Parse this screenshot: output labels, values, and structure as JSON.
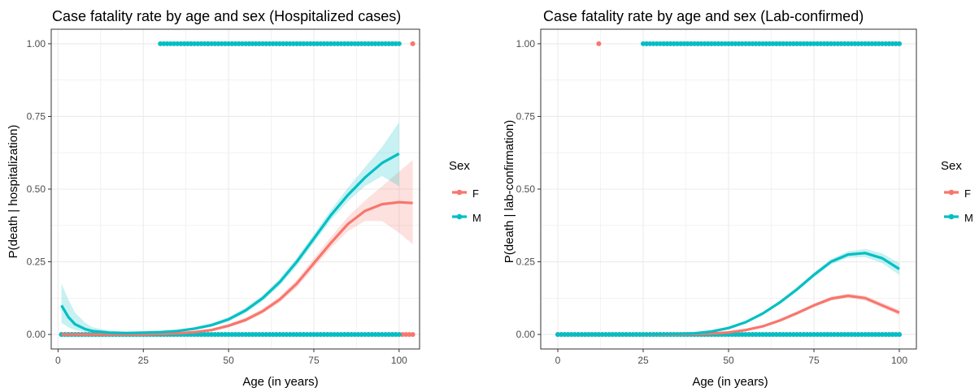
{
  "colors": {
    "F": "#F8766D",
    "M": "#00BFC4",
    "grid": "#EBEBEB",
    "axis": "#333333"
  },
  "chart_data": [
    {
      "type": "scatter",
      "title": "Case fatality rate by age and sex (Hospitalized cases)",
      "xlabel": "Age (in years)",
      "ylabel": "P(death | hospitalization)",
      "xlim": [
        -2,
        106
      ],
      "ylim": [
        -0.05,
        1.05
      ],
      "x_ticks": [
        0,
        25,
        50,
        75,
        100
      ],
      "y_ticks": [
        0.0,
        0.25,
        0.5,
        0.75,
        1.0
      ],
      "x_tick_labels": [
        "0",
        "25",
        "50",
        "75",
        "100"
      ],
      "y_tick_labels": [
        "0.00",
        "0.25",
        "0.50",
        "0.75",
        "1.00"
      ],
      "grid": true,
      "legend": {
        "title": "Sex",
        "position": "right",
        "entries": [
          "F",
          "M"
        ]
      },
      "series": [
        {
          "name": "F",
          "points_y0_age_range": [
            1,
            104
          ],
          "points_y1_ages": [
            36,
            39,
            42,
            45,
            48,
            51,
            54,
            57,
            60,
            63,
            66,
            69,
            72,
            75,
            78,
            81,
            84,
            87,
            90,
            93,
            96,
            99,
            104
          ],
          "fit": {
            "x": [
              1,
              5,
              10,
              15,
              20,
              25,
              30,
              35,
              40,
              45,
              50,
              55,
              60,
              65,
              70,
              75,
              80,
              85,
              90,
              95,
              100,
              104
            ],
            "y": [
              0.0,
              0.0,
              0.0,
              0.0,
              0.0,
              0.0,
              0.002,
              0.004,
              0.008,
              0.015,
              0.03,
              0.05,
              0.08,
              0.12,
              0.175,
              0.245,
              0.315,
              0.38,
              0.425,
              0.448,
              0.455,
              0.452
            ],
            "lo": [
              0.0,
              0.0,
              0.0,
              0.0,
              0.0,
              0.0,
              0.0,
              0.002,
              0.005,
              0.011,
              0.024,
              0.043,
              0.072,
              0.11,
              0.162,
              0.23,
              0.297,
              0.355,
              0.39,
              0.39,
              0.35,
              0.31
            ],
            "hi": [
              0.0,
              0.0,
              0.0,
              0.0,
              0.0,
              0.0,
              0.004,
              0.007,
              0.012,
              0.02,
              0.036,
              0.058,
              0.089,
              0.13,
              0.188,
              0.262,
              0.335,
              0.405,
              0.46,
              0.51,
              0.56,
              0.6
            ]
          }
        },
        {
          "name": "M",
          "points_y0_age_range": [
            1,
            100
          ],
          "points_y1_ages": [
            30,
            33,
            35,
            38,
            40,
            42,
            44,
            46,
            48,
            50,
            52,
            54,
            56,
            58,
            60,
            62,
            64,
            66,
            68,
            70,
            72,
            74,
            76,
            78,
            80,
            82,
            84,
            86,
            88,
            90,
            92,
            94,
            96,
            98,
            100
          ],
          "fit": {
            "x": [
              1,
              3,
              5,
              8,
              10,
              15,
              20,
              25,
              30,
              35,
              40,
              45,
              50,
              55,
              60,
              65,
              70,
              75,
              80,
              85,
              90,
              95,
              100
            ],
            "y": [
              0.1,
              0.06,
              0.035,
              0.018,
              0.012,
              0.006,
              0.005,
              0.006,
              0.008,
              0.012,
              0.02,
              0.032,
              0.052,
              0.083,
              0.125,
              0.18,
              0.25,
              0.33,
              0.41,
              0.48,
              0.54,
              0.59,
              0.622
            ],
            "lo": [
              0.04,
              0.025,
              0.015,
              0.008,
              0.005,
              0.002,
              0.002,
              0.003,
              0.005,
              0.008,
              0.015,
              0.026,
              0.045,
              0.074,
              0.115,
              0.168,
              0.236,
              0.315,
              0.393,
              0.458,
              0.51,
              0.545,
              0.51
            ],
            "hi": [
              0.175,
              0.12,
              0.075,
              0.04,
              0.025,
              0.013,
              0.009,
              0.009,
              0.011,
              0.016,
              0.025,
              0.038,
              0.06,
              0.092,
              0.135,
              0.192,
              0.264,
              0.345,
              0.428,
              0.505,
              0.575,
              0.645,
              0.73
            ]
          }
        }
      ]
    },
    {
      "type": "scatter",
      "title": "Case fatality rate by age and sex (Lab-confirmed)",
      "xlabel": "Age (in years)",
      "ylabel": "P(death | lab-confirmation)",
      "xlim": [
        -5,
        105
      ],
      "ylim": [
        -0.05,
        1.05
      ],
      "x_ticks": [
        0,
        25,
        50,
        75,
        100
      ],
      "y_ticks": [
        0.0,
        0.25,
        0.5,
        0.75,
        1.0
      ],
      "x_tick_labels": [
        "0",
        "25",
        "50",
        "75",
        "100"
      ],
      "y_tick_labels": [
        "0.00",
        "0.25",
        "0.50",
        "0.75",
        "1.00"
      ],
      "grid": true,
      "legend": {
        "title": "Sex",
        "position": "right",
        "entries": [
          "F",
          "M"
        ]
      },
      "series": [
        {
          "name": "F",
          "points_y0_age_range": [
            0,
            100
          ],
          "points_y1_ages": [
            12,
            26,
            31,
            33,
            36,
            39,
            42,
            45,
            48,
            51,
            54,
            57,
            60,
            63,
            66,
            69,
            72,
            75,
            78,
            81,
            84,
            87,
            90,
            93,
            96,
            100
          ],
          "fit": {
            "x": [
              0,
              10,
              20,
              30,
              40,
              45,
              50,
              55,
              60,
              65,
              70,
              75,
              80,
              85,
              90,
              95,
              100
            ],
            "y": [
              0.0,
              0.0,
              0.0,
              0.0,
              0.001,
              0.003,
              0.007,
              0.015,
              0.028,
              0.048,
              0.073,
              0.1,
              0.123,
              0.133,
              0.125,
              0.1,
              0.075
            ],
            "lo": [
              0.0,
              0.0,
              0.0,
              0.0,
              0.0,
              0.002,
              0.005,
              0.012,
              0.024,
              0.043,
              0.067,
              0.094,
              0.116,
              0.126,
              0.117,
              0.092,
              0.066
            ],
            "hi": [
              0.0,
              0.0,
              0.0,
              0.0,
              0.002,
              0.004,
              0.009,
              0.018,
              0.032,
              0.053,
              0.079,
              0.106,
              0.13,
              0.14,
              0.133,
              0.109,
              0.085
            ]
          }
        },
        {
          "name": "M",
          "points_y0_age_range": [
            0,
            100
          ],
          "points_y1_ages": [
            25,
            29,
            32,
            34,
            37,
            40,
            43,
            46,
            49,
            52,
            55,
            58,
            61,
            64,
            67,
            70,
            73,
            76,
            79,
            82,
            85,
            88,
            91,
            94,
            97,
            100
          ],
          "fit": {
            "x": [
              0,
              10,
              20,
              30,
              40,
              45,
              50,
              55,
              60,
              65,
              70,
              75,
              80,
              85,
              90,
              95,
              100
            ],
            "y": [
              0.0,
              0.0,
              0.0,
              0.001,
              0.004,
              0.01,
              0.022,
              0.042,
              0.072,
              0.11,
              0.155,
              0.205,
              0.25,
              0.275,
              0.28,
              0.262,
              0.225
            ],
            "lo": [
              0.0,
              0.0,
              0.0,
              0.0,
              0.003,
              0.008,
              0.019,
              0.038,
              0.067,
              0.104,
              0.148,
              0.197,
              0.241,
              0.264,
              0.266,
              0.245,
              0.205
            ],
            "hi": [
              0.0,
              0.0,
              0.0,
              0.002,
              0.005,
              0.012,
              0.025,
              0.046,
              0.077,
              0.116,
              0.162,
              0.213,
              0.259,
              0.286,
              0.294,
              0.279,
              0.245
            ]
          }
        }
      ]
    }
  ]
}
